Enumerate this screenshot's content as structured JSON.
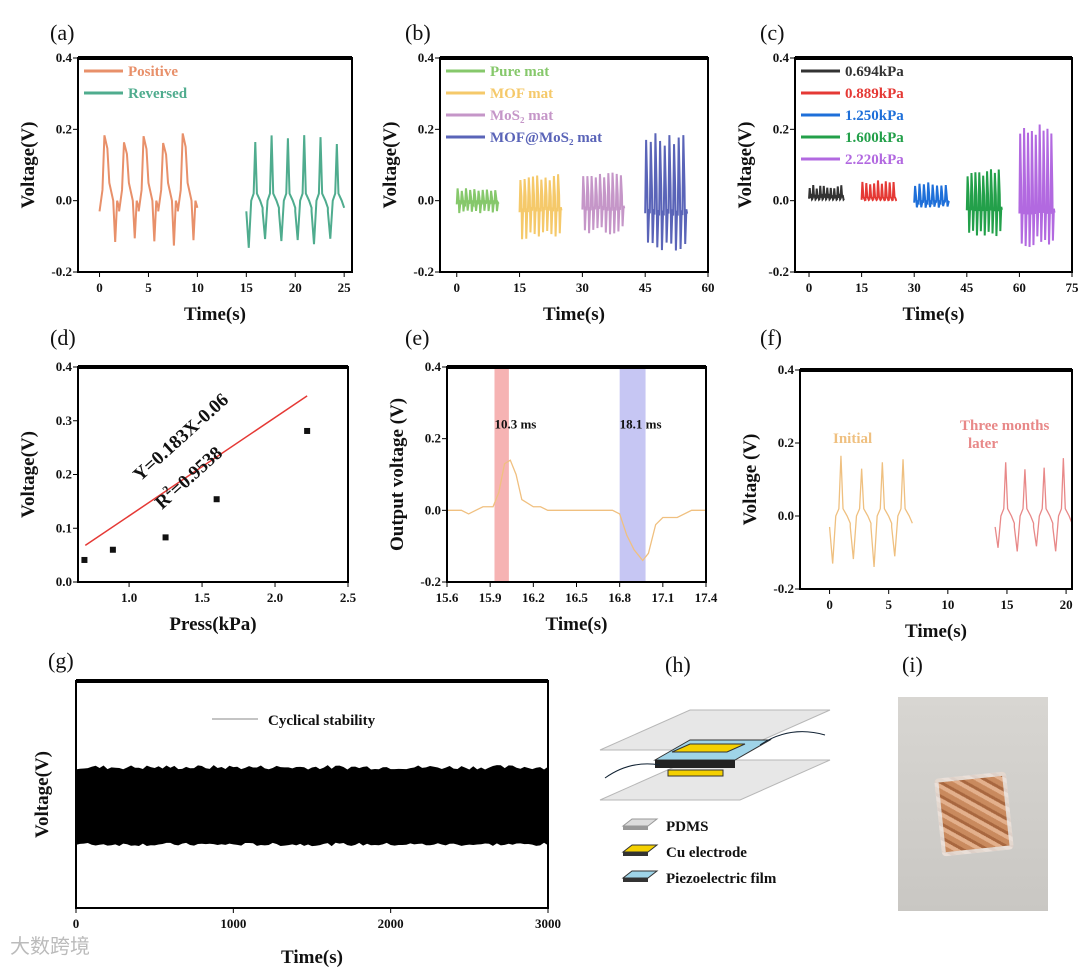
{
  "chart_data": [
    {
      "panel": "(a)",
      "type": "line",
      "xlabel": "Time(s)",
      "ylabel": "Voltage(V)",
      "xlim": [
        -2.2,
        25.8
      ],
      "ylim": [
        -0.2,
        0.4
      ],
      "xticks": [
        "0",
        "5",
        "10",
        "15",
        "20",
        "25"
      ],
      "xtickvals": [
        0,
        5,
        10,
        15,
        20,
        25
      ],
      "yticks": [
        "-0.2",
        "0.0",
        "0.2",
        "0.4"
      ],
      "ytickvals": [
        -0.2,
        0,
        0.2,
        0.4
      ],
      "legend": "top-left",
      "series": [
        {
          "name": "Positive",
          "color": "#e8906a",
          "t": [
            0,
            10
          ],
          "max": 0.21,
          "min": -0.13,
          "pulses": 5,
          "shape": "pos"
        },
        {
          "name": "Reversed",
          "color": "#4fac8e",
          "t": [
            15,
            25
          ],
          "max": 0.2,
          "min": -0.14,
          "pulses": 6,
          "shape": "rev"
        }
      ]
    },
    {
      "panel": "(b)",
      "type": "line",
      "xlabel": "Time(s)",
      "ylabel": "Voltage(V)",
      "xlim": [
        -4,
        60
      ],
      "ylim": [
        -0.2,
        0.4
      ],
      "xticks": [
        "0",
        "15",
        "30",
        "45",
        "60"
      ],
      "xtickvals": [
        0,
        15,
        30,
        45,
        60
      ],
      "yticks": [
        "-0.2",
        "0.0",
        "0.2",
        "0.4"
      ],
      "ytickvals": [
        -0.2,
        0,
        0.2,
        0.4
      ],
      "legend": "top-left",
      "series": [
        {
          "name": "Pure mat",
          "color": "#86c86b",
          "t": [
            0,
            10
          ],
          "max": 0.035,
          "min": -0.035,
          "pulses": 10,
          "shape": "sym"
        },
        {
          "name": "MOF mat",
          "color": "#f5c96a",
          "t": [
            15,
            25
          ],
          "max": 0.075,
          "min": -0.11,
          "pulses": 10,
          "shape": "sym"
        },
        {
          "name": "MoS2 mat",
          "color": "#c596c8",
          "t": [
            30,
            40
          ],
          "max": 0.08,
          "min": -0.095,
          "pulses": 10,
          "shape": "sym"
        },
        {
          "name": "MOF@MoS2 mat",
          "color": "#5a64b8",
          "t": [
            45,
            55
          ],
          "max": 0.205,
          "min": -0.14,
          "pulses": 9,
          "shape": "sym"
        }
      ]
    },
    {
      "panel": "(c)",
      "type": "line",
      "xlabel": "Time(s)",
      "ylabel": "Voltage(V)",
      "xlim": [
        -4,
        75
      ],
      "ylim": [
        -0.2,
        0.4
      ],
      "xticks": [
        "0",
        "15",
        "30",
        "45",
        "60",
        "75"
      ],
      "xtickvals": [
        0,
        15,
        30,
        45,
        60,
        75
      ],
      "yticks": [
        "-0.2",
        "0.0",
        "0.2",
        "0.4"
      ],
      "ytickvals": [
        -0.2,
        0,
        0.2,
        0.4
      ],
      "legend": "top-left",
      "series": [
        {
          "name": "0.694kPa",
          "color": "#333333",
          "t": [
            0,
            10
          ],
          "max": 0.045,
          "min": 0.02,
          "pulses": 10,
          "shape": "sym"
        },
        {
          "name": "0.889kPa",
          "color": "#e53935",
          "t": [
            15,
            25
          ],
          "max": 0.06,
          "min": 0.01,
          "pulses": 9,
          "shape": "sym"
        },
        {
          "name": "1.250kPa",
          "color": "#1e6fd9",
          "t": [
            30,
            40
          ],
          "max": 0.055,
          "min": -0.02,
          "pulses": 8,
          "shape": "sym"
        },
        {
          "name": "1.600kPa",
          "color": "#23a04a",
          "t": [
            45,
            55
          ],
          "max": 0.09,
          "min": -0.1,
          "pulses": 9,
          "shape": "sym"
        },
        {
          "name": "2.220kPa",
          "color": "#b269e0",
          "t": [
            60,
            70
          ],
          "max": 0.215,
          "min": -0.13,
          "pulses": 9,
          "shape": "sym"
        }
      ]
    },
    {
      "panel": "(d)",
      "type": "scatter",
      "xlabel": "Press(kPa)",
      "ylabel": "Voltage(V)",
      "xlim": [
        0.65,
        2.5
      ],
      "ylim": [
        0,
        0.4
      ],
      "xticks": [
        "1.0",
        "1.5",
        "2.0",
        "2.5"
      ],
      "xtickvals": [
        1,
        1.5,
        2,
        2.5
      ],
      "yticks": [
        "0.0",
        "0.1",
        "0.2",
        "0.3",
        "0.4"
      ],
      "ytickvals": [
        0,
        0.1,
        0.2,
        0.3,
        0.4
      ],
      "points": {
        "x": [
          0.694,
          0.889,
          1.25,
          1.6,
          2.22
        ],
        "y": [
          0.041,
          0.06,
          0.083,
          0.154,
          0.281
        ]
      },
      "fit": {
        "slope": 0.183,
        "intercept": -0.06,
        "color": "#e53935",
        "equation": "Y=0.183X-0.06",
        "r2_prefix": "R",
        "r2_sup": "2",
        "r2_value": "=0.9538"
      }
    },
    {
      "panel": "(e)",
      "type": "line",
      "xlabel": "Time(s)",
      "ylabel": "Output voltage (V)",
      "xlim": [
        15.6,
        17.4
      ],
      "ylim": [
        -0.2,
        0.4
      ],
      "xticks": [
        "15.6",
        "15.9",
        "16.2",
        "16.5",
        "16.8",
        "17.1",
        "17.4"
      ],
      "xtickvals": [
        15.6,
        15.9,
        16.2,
        16.5,
        16.8,
        17.1,
        17.4
      ],
      "yticks": [
        "-0.2",
        "0.0",
        "0.2",
        "0.4"
      ],
      "ytickvals": [
        -0.2,
        0,
        0.2,
        0.4
      ],
      "series": [
        {
          "name": "output",
          "color": "#f0c080",
          "x": [
            15.6,
            15.7,
            15.75,
            15.8,
            15.85,
            15.92,
            15.96,
            16.0,
            16.04,
            16.08,
            16.12,
            16.2,
            16.25,
            16.3,
            16.4,
            16.6,
            16.75,
            16.8,
            16.85,
            16.9,
            16.96,
            17.0,
            17.05,
            17.1,
            17.2,
            17.3,
            17.4
          ],
          "y": [
            0.0,
            0.0,
            -0.01,
            0.0,
            0.01,
            0.01,
            0.05,
            0.13,
            0.14,
            0.1,
            0.03,
            0.01,
            0.01,
            0.0,
            0.0,
            0.0,
            0.0,
            -0.01,
            -0.07,
            -0.11,
            -0.14,
            -0.12,
            -0.04,
            -0.02,
            -0.02,
            0.0,
            0.0
          ]
        }
      ],
      "bands": [
        {
          "from": 15.93,
          "to": 16.03,
          "color": "#f4a0a0",
          "label": "10.3 ms"
        },
        {
          "from": 16.8,
          "to": 16.98,
          "color": "#b8b8f0",
          "label": "18.1 ms"
        }
      ]
    },
    {
      "panel": "(f)",
      "type": "line",
      "xlabel": "Time(s)",
      "ylabel": "Voltage (V)",
      "xlim": [
        -2.5,
        20.5
      ],
      "ylim": [
        -0.2,
        0.4
      ],
      "xticks": [
        "0",
        "5",
        "10",
        "15",
        "20"
      ],
      "xtickvals": [
        0,
        5,
        10,
        15,
        20
      ],
      "yticks": [
        "-0.2",
        "0.0",
        "0.2",
        "0.4"
      ],
      "ytickvals": [
        -0.2,
        0,
        0.2,
        0.4
      ],
      "annotations": [
        "Initial",
        "Three months",
        "later"
      ],
      "series": [
        {
          "name": "Initial",
          "color": "#efc080",
          "t": [
            0,
            7
          ],
          "max": 0.17,
          "min": -0.14,
          "pulses": 4,
          "shape": "rev"
        },
        {
          "name": "Three months later",
          "color": "#e88888",
          "t": [
            14,
            20.5
          ],
          "max": 0.16,
          "min": -0.11,
          "pulses": 4,
          "shape": "rev"
        }
      ]
    },
    {
      "panel": "(g)",
      "type": "area",
      "xlabel": "Time(s)",
      "ylabel": "Voltage(V)",
      "xlim": [
        0,
        3000
      ],
      "xticks": [
        "0",
        "1000",
        "2000",
        "3000"
      ],
      "xtickvals": [
        0,
        1000,
        2000,
        3000
      ],
      "series": [
        {
          "name": "Cyclical stability",
          "color": "#000000",
          "upper": 0.62,
          "lower": 0.28
        }
      ]
    }
  ],
  "diagram": {
    "label": "(h)",
    "legend": [
      "PDMS",
      "Cu electrode",
      "Piezoelectric film"
    ]
  },
  "photo": {
    "label": "(i)"
  },
  "watermark": "大数跨境"
}
